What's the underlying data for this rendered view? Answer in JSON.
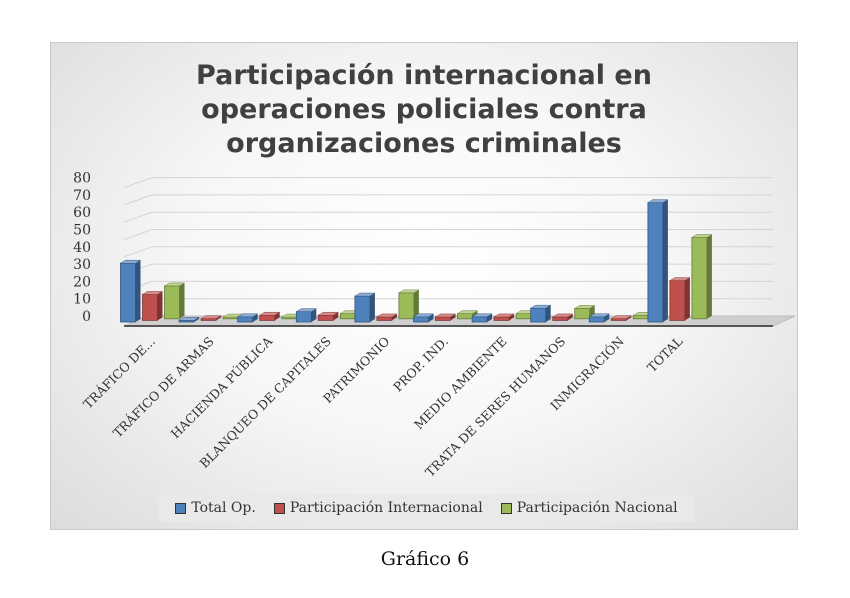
{
  "caption": "Gráfico 6",
  "chart_data": {
    "type": "bar",
    "title_lines": [
      "Participación internacional en",
      "operaciones policiales contra",
      "organizaciones criminales"
    ],
    "categories": [
      "TRÁFICO DE...",
      "TRÁFICO DE ARMAS",
      "HACIENDA PÚBLICA",
      "BLANQUEO DE CAPITALES",
      "PATRIMONIO",
      "PROP. IND.",
      "MEDIO AMBIENTE",
      "TRATA DE SERES HUMANOS",
      "INMIGRACIÓN",
      "TOTAL"
    ],
    "series": [
      {
        "name": "Total Op.",
        "color": "#4f81bd",
        "values": [
          34,
          1,
          3,
          6,
          15,
          3,
          3,
          8,
          3,
          69
        ]
      },
      {
        "name": "Participación Internacional",
        "color": "#c0504d",
        "values": [
          15,
          1,
          3,
          3,
          2,
          2,
          2,
          2,
          1,
          23
        ]
      },
      {
        "name": "Participación Nacional",
        "color": "#9bbb59",
        "values": [
          19,
          1,
          1,
          3,
          15,
          3,
          3,
          6,
          2,
          47
        ]
      }
    ],
    "yticks": [
      0,
      10,
      20,
      30,
      40,
      50,
      60,
      70,
      80
    ],
    "ylim": [
      0,
      80
    ],
    "legend_position": "bottom",
    "grid": true
  }
}
